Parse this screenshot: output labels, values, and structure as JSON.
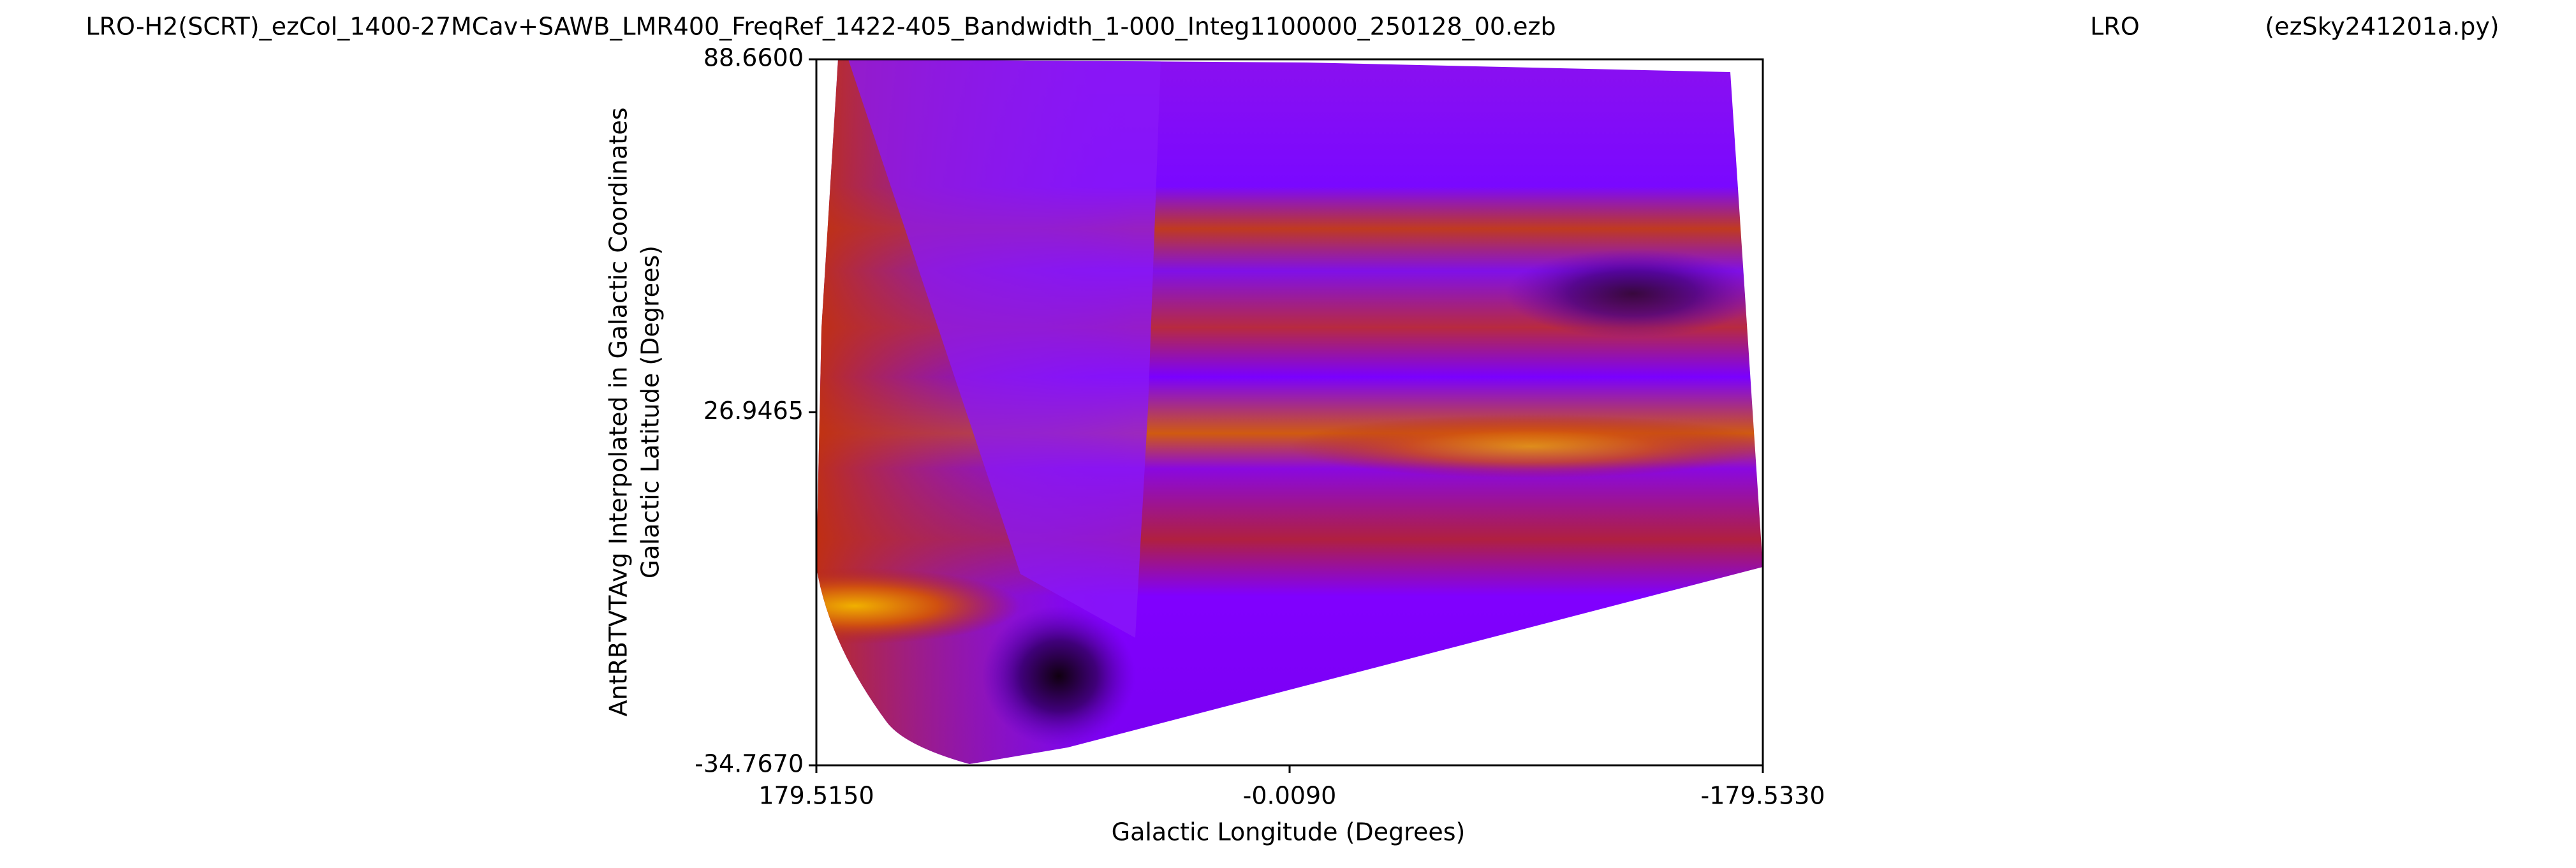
{
  "chart_data": {
    "type": "heatmap",
    "titles": [
      "LRO-H2(SCRT)_ezCol_1400-27MCav+SAWB_LMR400_FreqRef_1422-405_Bandwidth_1-000_Integ1100000_250128_00.ezb",
      "LRO",
      "(ezSky241201a.py)"
    ],
    "x_label": "Galactic Longitude (Degrees)",
    "y_label": [
      "AntRBTVTAvg Interpolated in Galactic Coordinates",
      "Galactic Latitude (Degrees)"
    ],
    "xlim": [
      179.515,
      -179.533
    ],
    "xticks": [
      {
        "value": 179.515,
        "label": "179.5150"
      },
      {
        "value": -0.009,
        "label": "-0.0090"
      },
      {
        "value": -179.533,
        "label": "-179.5330"
      }
    ],
    "ylim": [
      -34.767,
      88.66
    ],
    "yticks": [
      {
        "value": -34.767,
        "label": "-34.7670"
      },
      {
        "value": 26.9465,
        "label": "26.9465"
      },
      {
        "value": 88.66,
        "label": "88.6600"
      }
    ]
  }
}
